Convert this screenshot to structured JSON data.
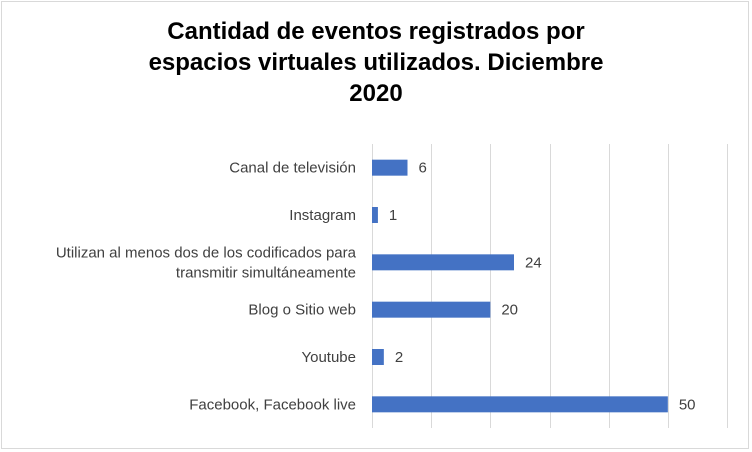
{
  "chart_data": {
    "type": "bar",
    "orientation": "horizontal",
    "title_lines": [
      "Cantidad de eventos registrados por",
      "espacios virtuales utilizados. Diciembre",
      "2020"
    ],
    "categories": [
      [
        "Canal de televisión"
      ],
      [
        "Instagram"
      ],
      [
        "Utilizan al menos dos de los codificados para",
        "transmitir simultáneamente"
      ],
      [
        "Blog o Sitio web"
      ],
      [
        "Youtube"
      ],
      [
        "Facebook, Facebook live"
      ]
    ],
    "values": [
      6,
      1,
      24,
      20,
      2,
      50
    ],
    "xlim": [
      0,
      60
    ],
    "grid": true,
    "bar_color": "#4472c4",
    "gridline_color": "#d9d9d9",
    "data_labels": true
  }
}
